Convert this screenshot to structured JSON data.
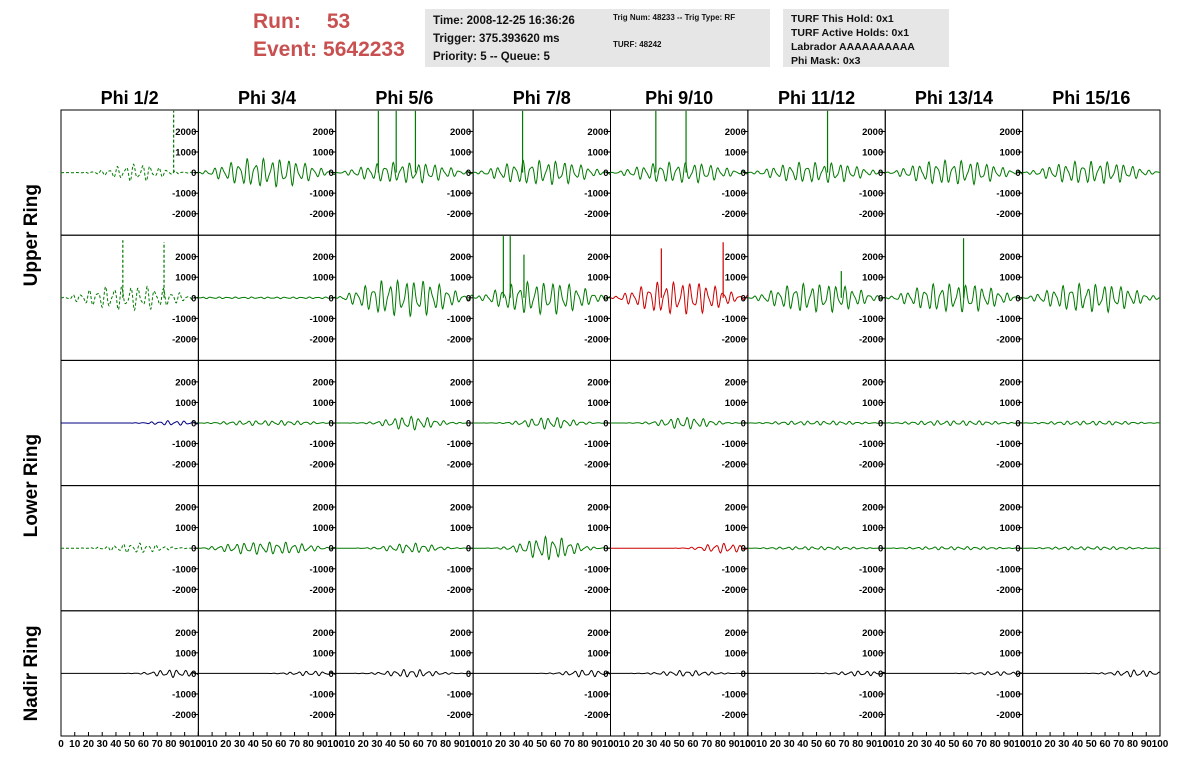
{
  "header": {
    "run_label": "Run:",
    "run_value": "53",
    "event_label": "Event:",
    "event_value": "5642233",
    "box1": [
      "Time: 2008-12-25 16:36:26",
      "Trigger: 375.393620 ms",
      "Priority: 5 -- Queue: 5"
    ],
    "box2": [
      "Trig Num: 48233 -- Trig Type: RF",
      "TURF: 48242"
    ],
    "box3": [
      "TURF This Hold: 0x1",
      "TURF Active Holds: 0x1",
      "Labrador AAAAAAAAAA",
      "Phi Mask: 0x3"
    ]
  },
  "chart_data": {
    "type": "line",
    "columns": [
      "Phi 1/2",
      "Phi 3/4",
      "Phi 5/6",
      "Phi 7/8",
      "Phi 9/10",
      "Phi 11/12",
      "Phi 13/14",
      "Phi 15/16"
    ],
    "ring_labels": [
      "Upper Ring",
      "Lower Ring",
      "Nadir Ring"
    ],
    "y_ticks": [
      "2000",
      "1000",
      "0",
      "-1000",
      "-2000"
    ],
    "y_range": [
      -2800,
      2800
    ],
    "x_ticks": [
      "0",
      "10",
      "20",
      "30",
      "40",
      "50",
      "60",
      "70",
      "80",
      "90",
      "100"
    ],
    "x_range": [
      0,
      100
    ],
    "colors": {
      "normal": "#007a00",
      "triggered": "#cc0000",
      "masked": "#000080",
      "nadir": "#000000"
    },
    "rows": [
      {
        "ring": "Upper Ring",
        "panels": [
          {
            "amp": 450,
            "style": "dashed",
            "color": "normal",
            "spikes": [
              {
                "x": 82,
                "v": 3000
              }
            ],
            "env": "mid"
          },
          {
            "amp": 700,
            "color": "normal",
            "env": "wide"
          },
          {
            "amp": 500,
            "color": "normal",
            "spikes": [
              {
                "x": 31,
                "v": 3000
              },
              {
                "x": 44,
                "v": 3000
              },
              {
                "x": 58,
                "v": 3000
              }
            ],
            "env": "wide"
          },
          {
            "amp": 600,
            "color": "normal",
            "spikes": [
              {
                "x": 36,
                "v": 3000
              }
            ],
            "env": "wide"
          },
          {
            "amp": 500,
            "color": "normal",
            "spikes": [
              {
                "x": 33,
                "v": 3000
              },
              {
                "x": 55,
                "v": 3000
              }
            ],
            "env": "wide"
          },
          {
            "amp": 500,
            "color": "normal",
            "spikes": [
              {
                "x": 58,
                "v": 3000
              }
            ],
            "env": "wide"
          },
          {
            "amp": 600,
            "color": "normal",
            "env": "wide"
          },
          {
            "amp": 550,
            "color": "normal",
            "env": "wide"
          }
        ]
      },
      {
        "ring": "Upper Ring",
        "panels": [
          {
            "amp": 600,
            "style": "dashed",
            "color": "normal",
            "spikes": [
              {
                "x": 45,
                "v": 2800
              },
              {
                "x": 75,
                "v": 2700
              }
            ],
            "env": "wide"
          },
          {
            "amp": 40,
            "color": "normal",
            "env": "flat"
          },
          {
            "amp": 900,
            "color": "normal",
            "env": "wide"
          },
          {
            "amp": 800,
            "color": "normal",
            "spikes": [
              {
                "x": 22,
                "v": 3000
              },
              {
                "x": 27,
                "v": 3000
              },
              {
                "x": 37,
                "v": 2100
              }
            ],
            "env": "wide"
          },
          {
            "amp": 800,
            "color": "triggered",
            "spikes": [
              {
                "x": 37,
                "v": 2400
              },
              {
                "x": 82,
                "v": 2700
              }
            ],
            "env": "wide"
          },
          {
            "amp": 700,
            "color": "normal",
            "spikes": [
              {
                "x": 68,
                "v": 1300
              }
            ],
            "env": "wide"
          },
          {
            "amp": 700,
            "color": "normal",
            "spikes": [
              {
                "x": 57,
                "v": 2900
              }
            ],
            "env": "wide"
          },
          {
            "amp": 700,
            "color": "normal",
            "env": "wide"
          }
        ]
      },
      {
        "ring": "Lower Ring",
        "panels": [
          {
            "amp": 120,
            "color": "masked",
            "env": "late"
          },
          {
            "amp": 120,
            "color": "normal",
            "env": "wide"
          },
          {
            "amp": 350,
            "color": "normal",
            "env": "mid"
          },
          {
            "amp": 300,
            "color": "normal",
            "env": "mid"
          },
          {
            "amp": 300,
            "color": "normal",
            "env": "mid"
          },
          {
            "amp": 100,
            "color": "normal",
            "env": "wide"
          },
          {
            "amp": 120,
            "color": "normal",
            "env": "wide"
          },
          {
            "amp": 100,
            "color": "normal",
            "env": "wide"
          }
        ]
      },
      {
        "ring": "Lower Ring",
        "panels": [
          {
            "amp": 250,
            "style": "dashed",
            "color": "normal",
            "env": "mid"
          },
          {
            "amp": 300,
            "color": "normal",
            "env": "wide"
          },
          {
            "amp": 250,
            "color": "normal",
            "env": "mid"
          },
          {
            "amp": 600,
            "color": "normal",
            "env": "mid"
          },
          {
            "amp": 250,
            "color": "triggered",
            "env": "late"
          },
          {
            "amp": 80,
            "color": "normal",
            "env": "wide"
          },
          {
            "amp": 80,
            "color": "normal",
            "env": "wide"
          },
          {
            "amp": 80,
            "color": "normal",
            "env": "wide"
          }
        ]
      },
      {
        "ring": "Nadir Ring",
        "panels": [
          {
            "amp": 200,
            "color": "nadir",
            "env": "late"
          },
          {
            "amp": 120,
            "color": "nadir",
            "env": "late"
          },
          {
            "amp": 200,
            "color": "nadir",
            "env": "mid"
          },
          {
            "amp": 180,
            "color": "nadir",
            "env": "late"
          },
          {
            "amp": 150,
            "color": "nadir",
            "env": "mid"
          },
          {
            "amp": 130,
            "color": "nadir",
            "env": "late"
          },
          {
            "amp": 100,
            "color": "nadir",
            "env": "late"
          },
          {
            "amp": 180,
            "color": "nadir",
            "env": "late"
          }
        ]
      }
    ]
  }
}
